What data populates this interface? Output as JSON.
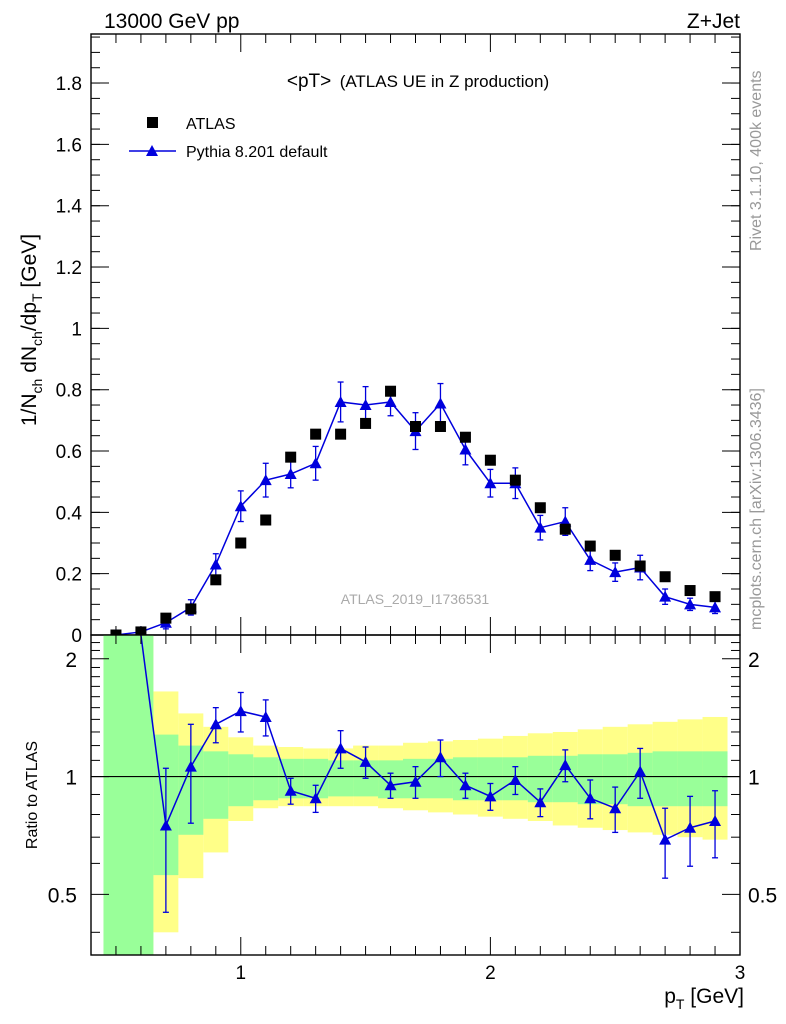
{
  "header": {
    "left": "13000 GeV pp",
    "right": "Z+Jet"
  },
  "title": {
    "main": "<pT>",
    "sub": "(ATLAS UE in Z production)"
  },
  "watermark": "ATLAS_2019_I1736531",
  "side_labels": {
    "rivet": "Rivet 3.1.10,  400k events",
    "mcplots": "mcplots.cern.ch [arXiv:1306.3436]"
  },
  "legend": {
    "data": "ATLAS",
    "mc": "Pythia 8.201 default"
  },
  "axes": {
    "ylabel_top": "1/N_ch dN_ch/dp_T [GeV]",
    "ylabel_bottom": "Ratio to ATLAS",
    "xlabel": "p_T [GeV]"
  },
  "colors": {
    "mc": "#0000dd",
    "data": "#000000",
    "band_inner": "#99ff99",
    "band_outer": "#ffff88"
  },
  "chart_data": [
    {
      "type": "scatter",
      "panel": "main",
      "xlim": [
        0.4,
        3.0
      ],
      "ylim": [
        0,
        1.96
      ],
      "xscale": "linear",
      "yticks": [
        0,
        0.2,
        0.4,
        0.6,
        0.8,
        1,
        1.2,
        1.4,
        1.6,
        1.8
      ],
      "ytick_labels": [
        "0",
        "0.2",
        "0.4",
        "0.6",
        "0.8",
        "1",
        "1.2",
        "1.4",
        "1.6",
        "1.8"
      ],
      "x": [
        0.5,
        0.6,
        0.7,
        0.8,
        0.9,
        1.0,
        1.1,
        1.2,
        1.3,
        1.4,
        1.5,
        1.6,
        1.7,
        1.8,
        1.9,
        2.0,
        2.1,
        2.2,
        2.3,
        2.4,
        2.5,
        2.6,
        2.7,
        2.8,
        2.9
      ],
      "series": [
        {
          "name": "ATLAS",
          "style": "marker-square",
          "values": [
            0.0,
            0.01,
            0.055,
            0.085,
            0.18,
            0.3,
            0.375,
            0.58,
            0.655,
            0.655,
            0.69,
            0.795,
            0.68,
            0.68,
            0.645,
            0.57,
            0.505,
            0.415,
            0.345,
            0.29,
            0.26,
            0.225,
            0.19,
            0.145,
            0.125
          ]
        },
        {
          "name": "Pythia 8.201 default",
          "style": "line-triangle",
          "values": [
            0.0,
            0.01,
            0.04,
            0.09,
            0.23,
            0.42,
            0.505,
            0.525,
            0.56,
            0.76,
            0.75,
            0.76,
            0.665,
            0.755,
            0.605,
            0.495,
            0.495,
            0.35,
            0.37,
            0.245,
            0.205,
            0.22,
            0.125,
            0.1,
            0.09
          ],
          "errors": [
            0.0,
            0.005,
            0.02,
            0.025,
            0.035,
            0.05,
            0.055,
            0.045,
            0.055,
            0.065,
            0.06,
            0.045,
            0.06,
            0.065,
            0.05,
            0.045,
            0.05,
            0.04,
            0.045,
            0.035,
            0.03,
            0.04,
            0.025,
            0.02,
            0.02
          ]
        }
      ]
    },
    {
      "type": "line",
      "panel": "ratio",
      "xlim": [
        0.4,
        3.0
      ],
      "ylim": [
        0.35,
        2.3
      ],
      "yscale": "log",
      "yticks": [
        0.5,
        1,
        2
      ],
      "ytick_labels": [
        "0.5",
        "1",
        "2"
      ],
      "xticks": [
        1,
        2,
        3
      ],
      "xtick_labels": [
        "1",
        "2",
        "3"
      ],
      "reference": 1.0,
      "band_edges": [
        0.45,
        0.65,
        0.75,
        0.85,
        0.95,
        1.05,
        1.15,
        1.25,
        1.35,
        1.45,
        1.55,
        1.65,
        1.75,
        1.85,
        1.95,
        2.05,
        2.15,
        2.25,
        2.35,
        2.45,
        2.55,
        2.65,
        2.75,
        2.85,
        2.95
      ],
      "band_inner": [
        [
          0.3,
          3.0
        ],
        [
          0.56,
          1.28
        ],
        [
          0.71,
          1.2
        ],
        [
          0.78,
          1.16
        ],
        [
          0.84,
          1.14
        ],
        [
          0.87,
          1.12
        ],
        [
          0.88,
          1.11
        ],
        [
          0.88,
          1.11
        ],
        [
          0.89,
          1.1
        ],
        [
          0.89,
          1.1
        ],
        [
          0.88,
          1.1
        ],
        [
          0.88,
          1.11
        ],
        [
          0.88,
          1.11
        ],
        [
          0.87,
          1.12
        ],
        [
          0.87,
          1.12
        ],
        [
          0.87,
          1.12
        ],
        [
          0.86,
          1.13
        ],
        [
          0.86,
          1.13
        ],
        [
          0.85,
          1.14
        ],
        [
          0.85,
          1.14
        ],
        [
          0.84,
          1.15
        ],
        [
          0.84,
          1.16
        ],
        [
          0.84,
          1.16
        ],
        [
          0.84,
          1.16
        ]
      ],
      "band_outer": [
        [
          0.3,
          3.0
        ],
        [
          0.4,
          1.65
        ],
        [
          0.55,
          1.45
        ],
        [
          0.64,
          1.34
        ],
        [
          0.77,
          1.26
        ],
        [
          0.83,
          1.2
        ],
        [
          0.84,
          1.19
        ],
        [
          0.84,
          1.18
        ],
        [
          0.84,
          1.18
        ],
        [
          0.84,
          1.2
        ],
        [
          0.83,
          1.2
        ],
        [
          0.82,
          1.22
        ],
        [
          0.81,
          1.23
        ],
        [
          0.8,
          1.24
        ],
        [
          0.79,
          1.25
        ],
        [
          0.78,
          1.27
        ],
        [
          0.77,
          1.29
        ],
        [
          0.75,
          1.3
        ],
        [
          0.74,
          1.32
        ],
        [
          0.73,
          1.34
        ],
        [
          0.72,
          1.36
        ],
        [
          0.71,
          1.38
        ],
        [
          0.7,
          1.4
        ],
        [
          0.69,
          1.42
        ]
      ],
      "x": [
        0.7,
        0.8,
        0.9,
        1.0,
        1.1,
        1.2,
        1.3,
        1.4,
        1.5,
        1.6,
        1.7,
        1.8,
        1.9,
        2.0,
        2.1,
        2.2,
        2.3,
        2.4,
        2.5,
        2.6,
        2.7,
        2.8,
        2.9
      ],
      "series": [
        {
          "name": "Pythia 8.201 default",
          "values": [
            0.75,
            1.06,
            1.36,
            1.47,
            1.42,
            0.92,
            0.88,
            1.18,
            1.09,
            0.95,
            0.97,
            1.12,
            0.95,
            0.89,
            0.98,
            0.86,
            1.07,
            0.88,
            0.83,
            1.03,
            0.69,
            0.74,
            0.77
          ],
          "errors": [
            0.3,
            0.3,
            0.14,
            0.17,
            0.15,
            0.07,
            0.07,
            0.13,
            0.1,
            0.07,
            0.09,
            0.12,
            0.07,
            0.07,
            0.08,
            0.07,
            0.1,
            0.1,
            0.11,
            0.15,
            0.14,
            0.15,
            0.15
          ],
          "extends_from": {
            "x": 0.6,
            "y": 3.0
          }
        }
      ]
    }
  ]
}
